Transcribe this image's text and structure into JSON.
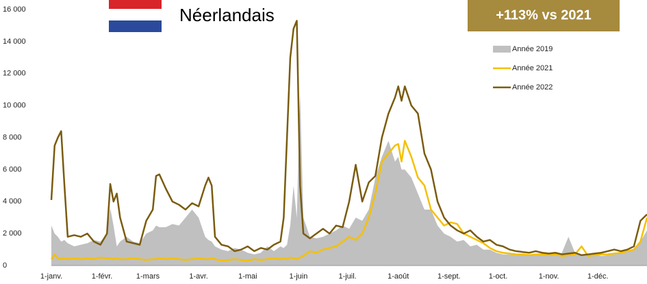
{
  "chart_data": {
    "type": "line",
    "title": "Néerlandais",
    "annotation": "+113% vs 2021",
    "legend": "upper right",
    "xlim": [
      0,
      364
    ],
    "xticks": [
      {
        "value": 0,
        "label": "1-janv."
      },
      {
        "value": 31,
        "label": "1-févr."
      },
      {
        "value": 59,
        "label": "1-mars"
      },
      {
        "value": 90,
        "label": "1-avr."
      },
      {
        "value": 120,
        "label": "1-mai"
      },
      {
        "value": 151,
        "label": "1-juin"
      },
      {
        "value": 181,
        "label": "1-juil."
      },
      {
        "value": 212,
        "label": "1-août"
      },
      {
        "value": 243,
        "label": "1-sept."
      },
      {
        "value": 273,
        "label": "1-oct."
      },
      {
        "value": 304,
        "label": "1-nov."
      },
      {
        "value": 334,
        "label": "1-déc."
      }
    ],
    "ylim": [
      0,
      16000
    ],
    "yticks": [
      0,
      {
        "value": 2000,
        "label": "2 000"
      },
      {
        "value": 4000,
        "label": "4 000"
      },
      {
        "value": 6000,
        "label": "6 000"
      },
      {
        "value": 8000,
        "label": "8 000"
      },
      {
        "value": 10000,
        "label": "10 000"
      },
      {
        "value": 12000,
        "label": "12 000"
      },
      {
        "value": 14000,
        "label": "14 000"
      },
      {
        "value": 16000,
        "label": "16 000"
      }
    ],
    "x": [
      0,
      2,
      4,
      6,
      8,
      10,
      14,
      18,
      22,
      26,
      30,
      34,
      36,
      38,
      40,
      42,
      46,
      50,
      54,
      58,
      62,
      64,
      66,
      70,
      74,
      78,
      82,
      86,
      90,
      94,
      96,
      98,
      100,
      104,
      108,
      112,
      116,
      120,
      124,
      128,
      132,
      136,
      140,
      142,
      144,
      146,
      148,
      150,
      152,
      154,
      158,
      162,
      166,
      170,
      174,
      178,
      182,
      186,
      190,
      194,
      198,
      202,
      206,
      210,
      212,
      214,
      216,
      220,
      224,
      228,
      232,
      236,
      240,
      244,
      248,
      252,
      256,
      260,
      264,
      268,
      272,
      276,
      280,
      284,
      288,
      292,
      296,
      300,
      304,
      308,
      312,
      316,
      320,
      324,
      328,
      332,
      336,
      340,
      344,
      348,
      352,
      356,
      360,
      364
    ],
    "series": [
      {
        "name": "Année 2019",
        "color": "#c0c0c0",
        "style": "area",
        "values": [
          2500,
          2000,
          1800,
          1500,
          1600,
          1400,
          1200,
          1300,
          1400,
          1600,
          1500,
          2000,
          3600,
          2500,
          1200,
          1500,
          1800,
          1500,
          1400,
          2000,
          2200,
          2500,
          2400,
          2400,
          2600,
          2500,
          3000,
          3500,
          3000,
          1800,
          1600,
          1500,
          1200,
          1000,
          900,
          1100,
          1000,
          800,
          700,
          800,
          1200,
          900,
          1200,
          1100,
          1300,
          2500,
          5000,
          3000,
          10800,
          3000,
          1800,
          1700,
          1800,
          2000,
          2200,
          2500,
          2300,
          3000,
          2800,
          3500,
          5500,
          6800,
          7800,
          6500,
          6800,
          6000,
          6000,
          5500,
          4500,
          3500,
          3500,
          2500,
          2000,
          1800,
          1500,
          1600,
          1200,
          1300,
          1000,
          1000,
          800,
          700,
          700,
          650,
          700,
          650,
          700,
          650,
          700,
          700,
          800,
          1800,
          800,
          700,
          650,
          700,
          600,
          650,
          700,
          800,
          900,
          1000,
          1500,
          2200
        ]
      },
      {
        "name": "Année 2021",
        "color": "#f5c000",
        "style": "line",
        "values": [
          400,
          700,
          450,
          400,
          450,
          400,
          450,
          400,
          450,
          400,
          500,
          450,
          450,
          400,
          450,
          400,
          400,
          450,
          400,
          350,
          400,
          400,
          450,
          400,
          450,
          400,
          350,
          400,
          450,
          400,
          400,
          450,
          400,
          300,
          350,
          400,
          350,
          300,
          400,
          350,
          400,
          450,
          400,
          450,
          400,
          500,
          450,
          400,
          500,
          600,
          900,
          800,
          1000,
          1100,
          1200,
          1500,
          1800,
          1600,
          2000,
          3000,
          4500,
          6500,
          7000,
          7500,
          7600,
          6500,
          7800,
          6800,
          5500,
          5000,
          3500,
          3000,
          2500,
          2700,
          2600,
          2000,
          1800,
          1600,
          1400,
          1100,
          900,
          800,
          750,
          700,
          700,
          650,
          700,
          700,
          650,
          700,
          600,
          650,
          700,
          1200,
          600,
          650,
          700,
          700,
          750,
          800,
          900,
          1000,
          1500,
          3000
        ]
      },
      {
        "name": "Année 2022",
        "color": "#7a5c0f",
        "style": "line",
        "values": [
          4100,
          7500,
          8000,
          8400,
          5000,
          1800,
          1900,
          1800,
          2000,
          1500,
          1300,
          2000,
          5100,
          4000,
          4500,
          3000,
          1500,
          1400,
          1300,
          2800,
          3500,
          5600,
          5700,
          4800,
          4000,
          3800,
          3500,
          3900,
          3700,
          5000,
          5500,
          5000,
          1800,
          1300,
          1200,
          900,
          1000,
          1200,
          900,
          1100,
          1000,
          1300,
          1500,
          3000,
          8000,
          13000,
          14800,
          15300,
          5000,
          2000,
          1700,
          2000,
          2300,
          2000,
          2500,
          2400,
          4000,
          6300,
          4000,
          5200,
          5600,
          8000,
          9500,
          10500,
          11200,
          10300,
          11200,
          10000,
          9500,
          7000,
          6000,
          4000,
          3000,
          2500,
          2200,
          2000,
          2200,
          1800,
          1500,
          1600,
          1300,
          1200,
          1000,
          900,
          850,
          800,
          900,
          800,
          750,
          800,
          700,
          750,
          800,
          650,
          700,
          750,
          800,
          900,
          1000,
          900,
          1000,
          1200,
          2800,
          3200
        ]
      }
    ]
  }
}
